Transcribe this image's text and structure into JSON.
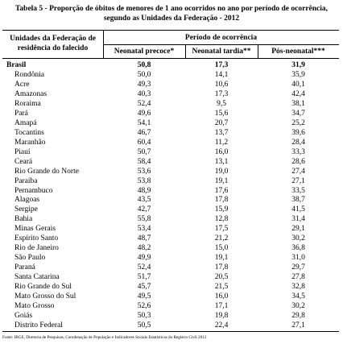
{
  "header": {
    "title": [
      "Tabela 5 - Proporção de óbitos de menores de 1 ano ocorridos no ano por período de ocorrência,",
      "segundo as Unidades da Federação - 2012"
    ]
  },
  "table": {
    "row_header": [
      "Unidades da Federação de",
      "residência do falecido"
    ],
    "group_header": "Período de ocorrência",
    "columns": [
      "Neonatal precoce*",
      "Neonatal tardia**",
      "Pós-neonatal***"
    ],
    "total": [
      "Brasil",
      "50,8",
      "17,3",
      "31,9"
    ],
    "rows": [
      [
        "Rondônia",
        "50,0",
        "14,1",
        "35,9"
      ],
      [
        "Acre",
        "49,3",
        "10,6",
        "40,1"
      ],
      [
        "Amazonas",
        "40,3",
        "17,3",
        "42,4"
      ],
      [
        "Roraima",
        "52,4",
        "9,5",
        "38,1"
      ],
      [
        "Pará",
        "49,6",
        "15,6",
        "34,7"
      ],
      [
        "Amapá",
        "54,1",
        "20,7",
        "25,2"
      ],
      [
        "Tocantins",
        "46,7",
        "13,7",
        "39,6"
      ],
      [
        "Maranhão",
        "60,4",
        "11,2",
        "28,4"
      ],
      [
        "Piauí",
        "50,7",
        "16,0",
        "33,3"
      ],
      [
        "Ceará",
        "58,4",
        "13,1",
        "28,6"
      ],
      [
        "Rio Grande do Norte",
        "53,6",
        "19,0",
        "27,4"
      ],
      [
        "Paraíba",
        "53,8",
        "19,1",
        "27,1"
      ],
      [
        "Pernambuco",
        "48,9",
        "17,6",
        "33,5"
      ],
      [
        "Alagoas",
        "43,5",
        "17,8",
        "38,7"
      ],
      [
        "Sergipe",
        "42,7",
        "15,9",
        "41,5"
      ],
      [
        "Bahia",
        "55,8",
        "12,8",
        "31,4"
      ],
      [
        "Minas Gerais",
        "53,4",
        "17,5",
        "29,1"
      ],
      [
        "Espírito Santo",
        "48,7",
        "21,2",
        "30,2"
      ],
      [
        "Rio de Janeiro",
        "48,2",
        "15,0",
        "36,8"
      ],
      [
        "São Paulo",
        "49,9",
        "19,1",
        "31,0"
      ],
      [
        "Paraná",
        "52,4",
        "17,8",
        "29,7"
      ],
      [
        "Santa Catarina",
        "51,7",
        "20,5",
        "27,8"
      ],
      [
        "Rio Grande do Sul",
        "45,7",
        "21,5",
        "32,8"
      ],
      [
        "Mato Grosso do Sul",
        "49,5",
        "16,0",
        "34,5"
      ],
      [
        "Mato Grosso",
        "52,6",
        "17,1",
        "30,2"
      ],
      [
        "Goiás",
        "50,3",
        "19,8",
        "29,8"
      ],
      [
        "Distrito Federal",
        "50,5",
        "22,4",
        "27,1"
      ]
    ]
  },
  "footer": {
    "source": "Fonte: IBGE, Diretoria de Pesquisas, Coordenação de População e Indicadores Sociais Estatísticas do Registro Civil 2012"
  }
}
